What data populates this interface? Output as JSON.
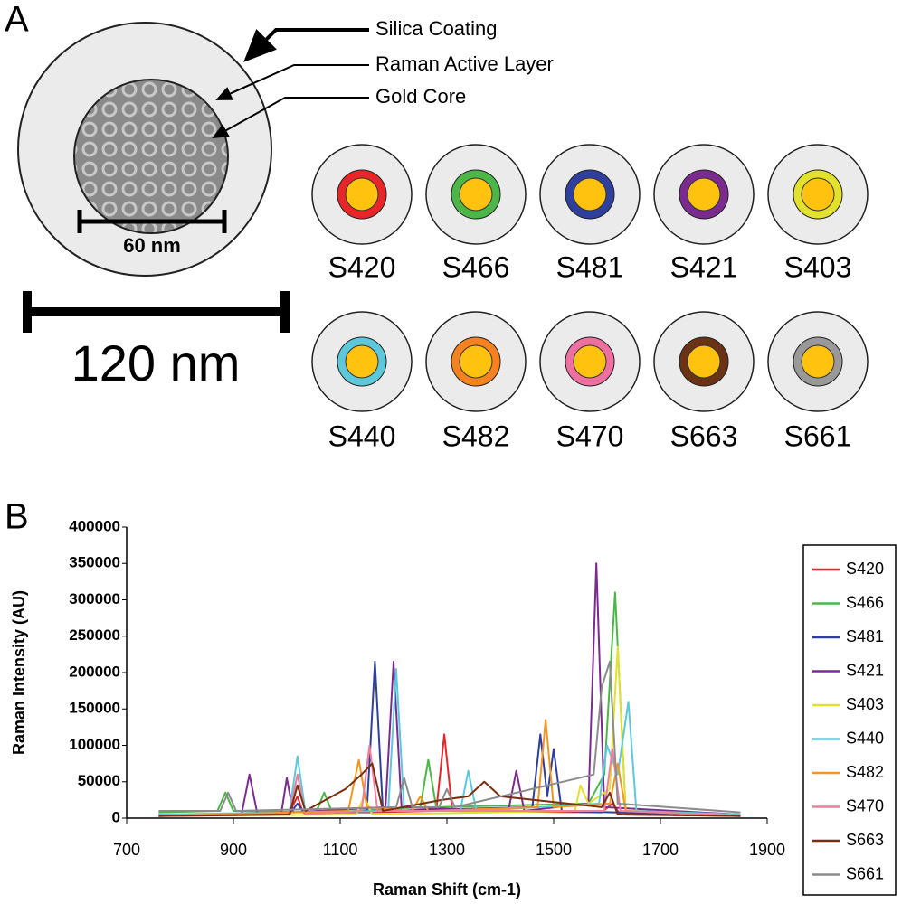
{
  "panel_a": {
    "label": "A",
    "callouts": [
      "Silica Coating",
      "Raman Active Layer",
      "Gold Core"
    ],
    "core_scale": "60 nm",
    "scale_bar": "120 nm",
    "particles": [
      {
        "name": "S420",
        "color": "#e8262a"
      },
      {
        "name": "S466",
        "color": "#4cb648"
      },
      {
        "name": "S481",
        "color": "#2e3f9e"
      },
      {
        "name": "S421",
        "color": "#7b2b8f"
      },
      {
        "name": "S403",
        "color": "#e2e22e"
      },
      {
        "name": "S440",
        "color": "#5cc8dc"
      },
      {
        "name": "S482",
        "color": "#f5821e"
      },
      {
        "name": "S470",
        "color": "#ee6fa0"
      },
      {
        "name": "S663",
        "color": "#6b3316"
      },
      {
        "name": "S661",
        "color": "#999999"
      }
    ]
  },
  "chart_data": {
    "type": "line",
    "panel_label": "B",
    "x_label": "Raman Shift (cm-1)",
    "y_label": "Raman Intensity (AU)",
    "xlim": [
      700,
      1900
    ],
    "xticks": [
      700,
      900,
      1100,
      1300,
      1500,
      1700,
      1900
    ],
    "ylim": [
      0,
      400000
    ],
    "yticks": [
      0,
      50000,
      100000,
      150000,
      200000,
      250000,
      300000,
      350000,
      400000
    ],
    "legend": "right",
    "series": [
      {
        "name": "S420",
        "color": "#e8262a",
        "x": [
          760,
          1000,
          1010,
          1020,
          1030,
          1150,
          1280,
          1295,
          1310,
          1590,
          1610,
          1625,
          1850
        ],
        "values": [
          5000,
          5000,
          15000,
          30000,
          8000,
          8000,
          10000,
          115000,
          10000,
          8000,
          20000,
          5000,
          3000
        ]
      },
      {
        "name": "S466",
        "color": "#4cb648",
        "x": [
          760,
          870,
          885,
          900,
          1055,
          1070,
          1085,
          1250,
          1265,
          1280,
          1565,
          1580,
          1595,
          1615,
          1635,
          1850
        ],
        "values": [
          8000,
          10000,
          35000,
          10000,
          8000,
          35000,
          8000,
          15000,
          80000,
          15000,
          20000,
          40000,
          60000,
          310000,
          10000,
          5000
        ]
      },
      {
        "name": "S481",
        "color": "#2e3f9e",
        "x": [
          760,
          1005,
          1020,
          1035,
          1150,
          1165,
          1180,
          1460,
          1475,
          1488,
          1500,
          1515,
          1850
        ],
        "values": [
          5000,
          5000,
          20000,
          5000,
          10000,
          215000,
          10000,
          15000,
          115000,
          30000,
          95000,
          10000,
          3000
        ]
      },
      {
        "name": "S421",
        "color": "#7b2b8f",
        "x": [
          760,
          915,
          930,
          945,
          990,
          1000,
          1012,
          1185,
          1200,
          1215,
          1415,
          1430,
          1445,
          1565,
          1580,
          1595,
          1850
        ],
        "values": [
          3000,
          5000,
          60000,
          5000,
          8000,
          55000,
          8000,
          15000,
          215000,
          15000,
          10000,
          65000,
          10000,
          20000,
          350000,
          15000,
          5000
        ]
      },
      {
        "name": "S403",
        "color": "#e2e22e",
        "x": [
          760,
          1130,
          1145,
          1160,
          1540,
          1550,
          1565,
          1605,
          1620,
          1635,
          1850
        ],
        "values": [
          3000,
          5000,
          30000,
          5000,
          10000,
          45000,
          20000,
          40000,
          235000,
          10000,
          3000
        ]
      },
      {
        "name": "S440",
        "color": "#5cc8dc",
        "x": [
          760,
          1005,
          1020,
          1035,
          1190,
          1205,
          1220,
          1325,
          1340,
          1355,
          1585,
          1600,
          1620,
          1640,
          1655,
          1850
        ],
        "values": [
          5000,
          8000,
          85000,
          8000,
          10000,
          205000,
          10000,
          10000,
          65000,
          10000,
          20000,
          100000,
          60000,
          160000,
          10000,
          5000
        ]
      },
      {
        "name": "S482",
        "color": "#f5941e",
        "x": [
          760,
          1115,
          1135,
          1150,
          1235,
          1250,
          1265,
          1470,
          1485,
          1500,
          1605,
          1620,
          1635,
          1850
        ],
        "values": [
          3000,
          10000,
          80000,
          15000,
          10000,
          30000,
          10000,
          15000,
          135000,
          15000,
          20000,
          75000,
          10000,
          3000
        ]
      },
      {
        "name": "S470",
        "color": "#f07e9a",
        "x": [
          760,
          1005,
          1020,
          1035,
          1140,
          1155,
          1170,
          1595,
          1610,
          1625,
          1850
        ],
        "values": [
          3000,
          5000,
          60000,
          5000,
          10000,
          100000,
          10000,
          10000,
          95000,
          10000,
          3000
        ]
      },
      {
        "name": "S663",
        "color": "#7a2e12",
        "x": [
          760,
          1005,
          1020,
          1035,
          1110,
          1140,
          1160,
          1180,
          1290,
          1340,
          1370,
          1400,
          1590,
          1605,
          1620,
          1850
        ],
        "values": [
          3000,
          5000,
          45000,
          10000,
          40000,
          60000,
          75000,
          10000,
          25000,
          30000,
          50000,
          30000,
          15000,
          35000,
          5000,
          3000
        ]
      },
      {
        "name": "S661",
        "color": "#8c8c8c",
        "x": [
          760,
          875,
          890,
          905,
          1205,
          1220,
          1235,
          1285,
          1300,
          1315,
          1575,
          1590,
          1605,
          1620,
          1850
        ],
        "values": [
          10000,
          10000,
          35000,
          10000,
          15000,
          55000,
          15000,
          15000,
          40000,
          15000,
          60000,
          180000,
          215000,
          20000,
          8000
        ]
      }
    ]
  }
}
